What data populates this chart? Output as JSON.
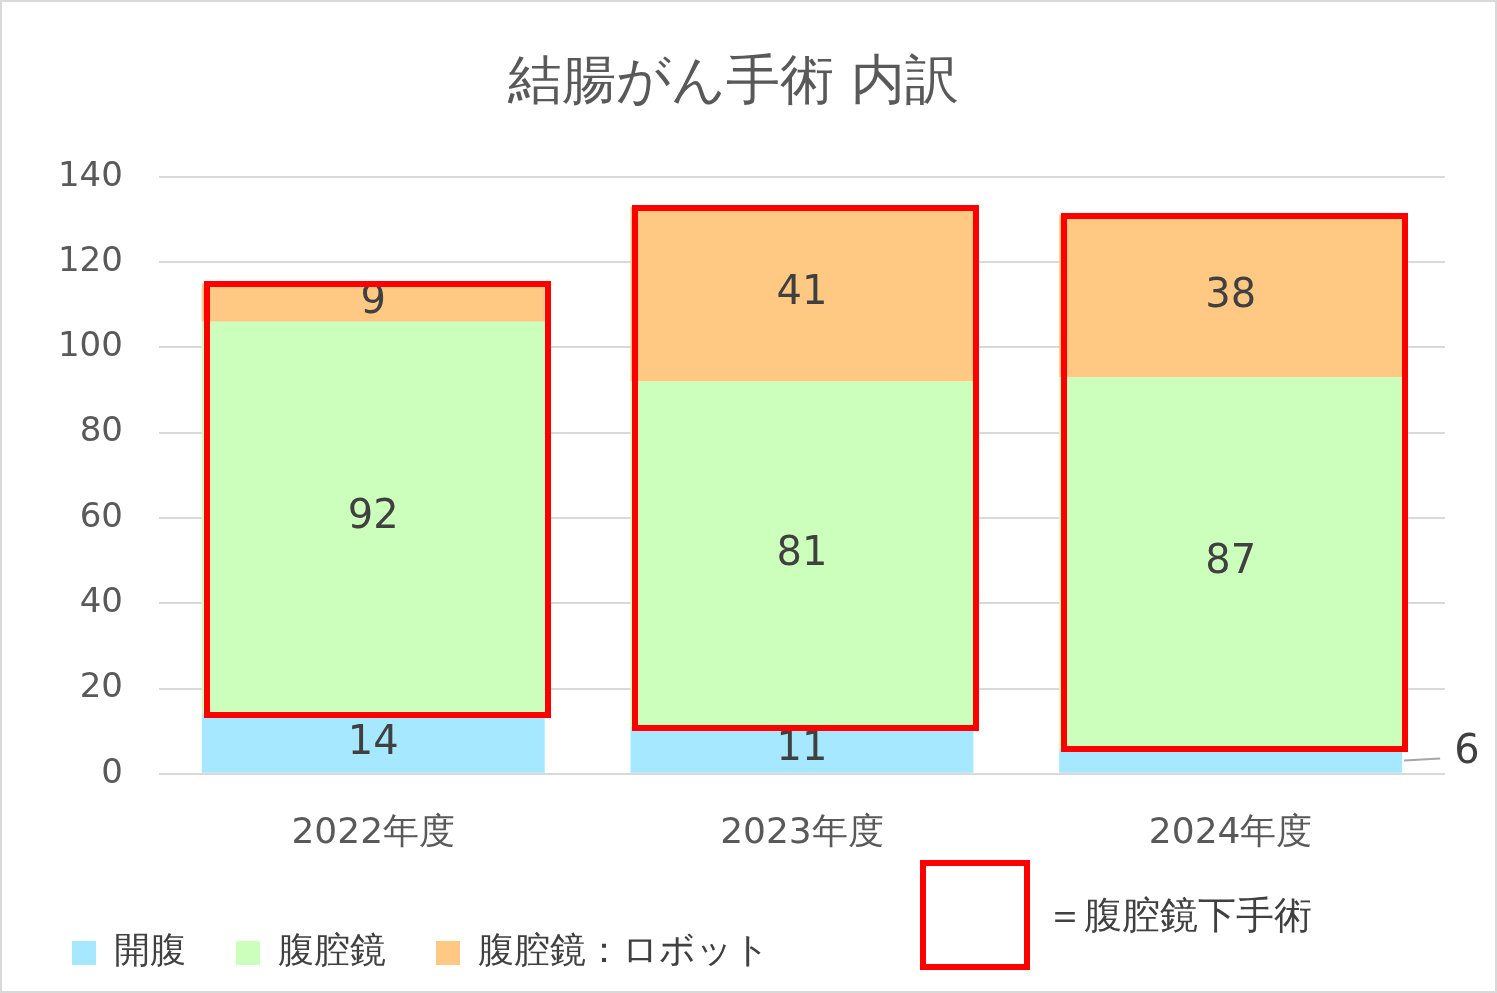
{
  "chart_data": {
    "type": "bar",
    "title": "結腸がん手術 内訳",
    "stacked": true,
    "categories": [
      "2022年度",
      "2023年度",
      "2024年度"
    ],
    "series": [
      {
        "name": "開腹",
        "color": "#a6e8ff",
        "values": [
          14,
          11,
          6
        ]
      },
      {
        "name": "腹腔鏡",
        "color": "#ccffbb",
        "values": [
          92,
          81,
          87
        ]
      },
      {
        "name": "腹腔鏡：ロボット",
        "color": "#ffc984",
        "values": [
          9,
          41,
          38
        ]
      }
    ],
    "ylim": [
      0,
      140
    ],
    "yticks": [
      0,
      20,
      40,
      60,
      80,
      100,
      120,
      140
    ],
    "grid": "y",
    "legend": "bottom",
    "data_labels": true,
    "annotations": [
      "＝腹腔鏡下手術"
    ]
  }
}
